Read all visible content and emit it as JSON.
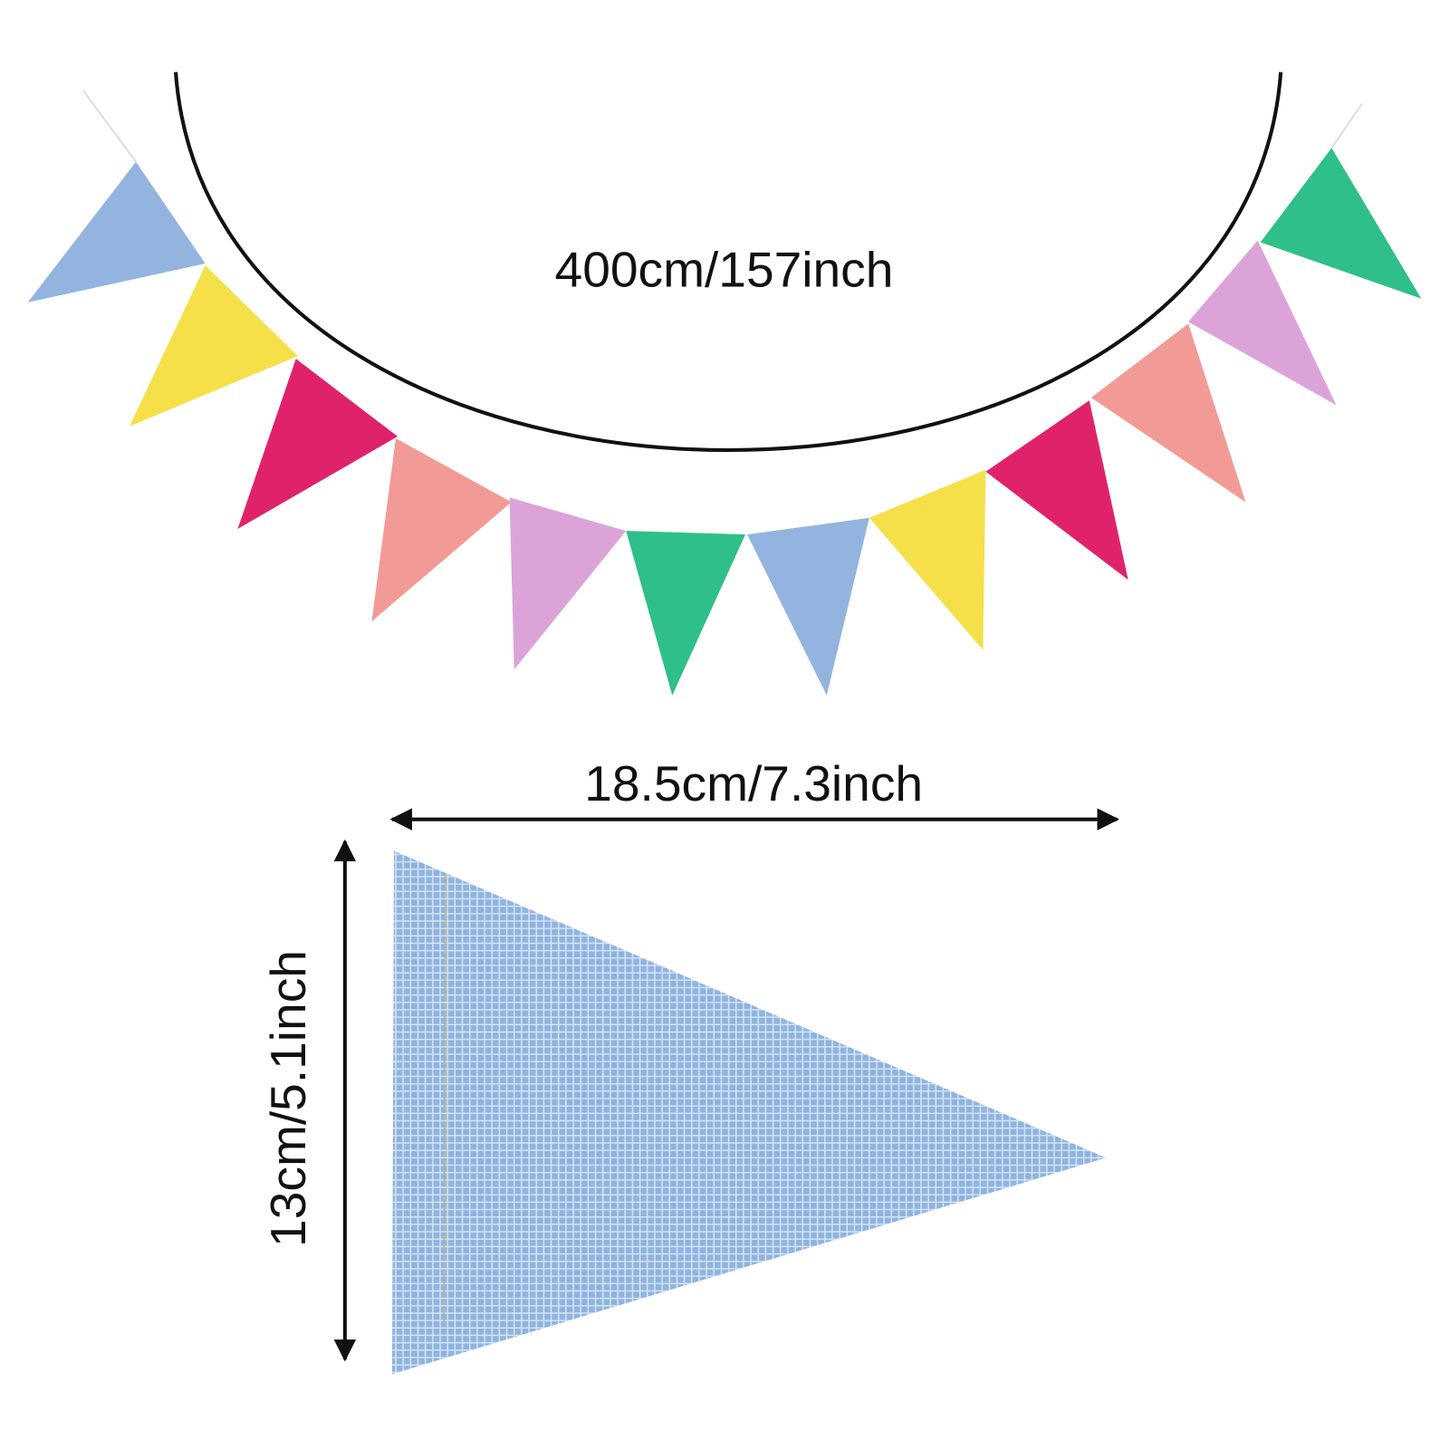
{
  "garland": {
    "length_label": "400cm/157inch"
  },
  "flag": {
    "width_label": "18.5cm/7.3inch",
    "height_label": "13cm/5.1inch"
  }
}
